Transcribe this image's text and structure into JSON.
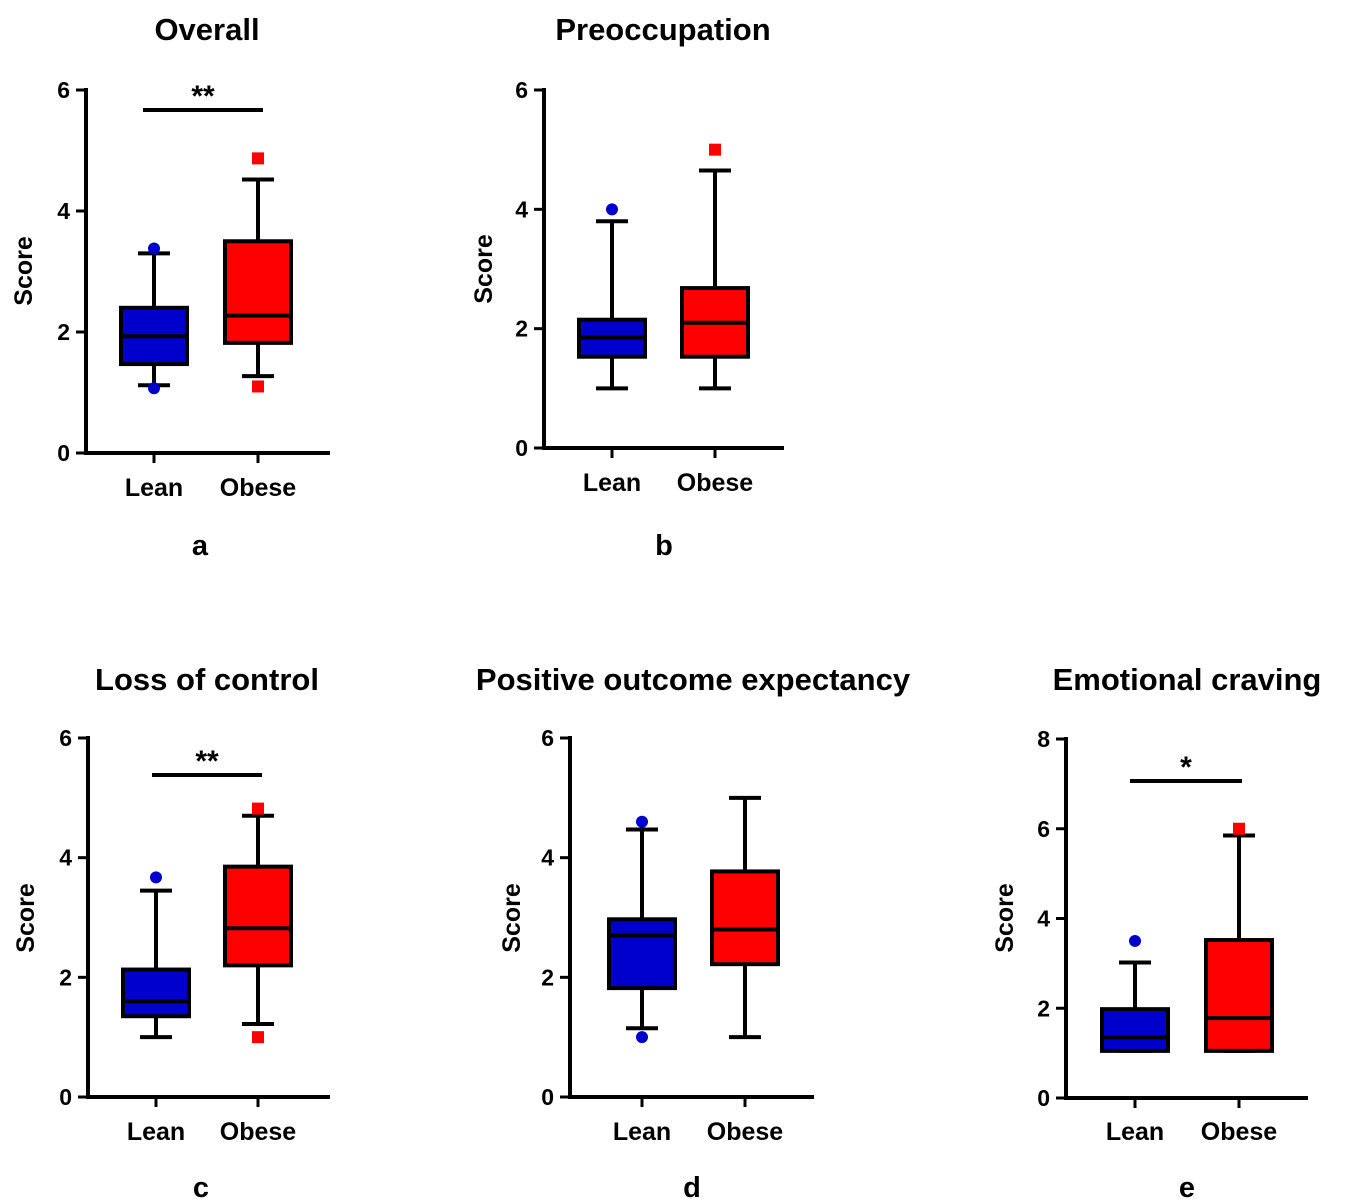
{
  "colors": {
    "lean": "#0000cc",
    "obese": "#ff0000",
    "axis": "#000000"
  },
  "chart_data": [
    {
      "type": "box",
      "panel": "a",
      "title": "Overall",
      "ylabel": "Score",
      "ylim": [
        0,
        6
      ],
      "yticks": [
        0,
        2,
        4,
        6
      ],
      "categories": [
        "Lean",
        "Obese"
      ],
      "significance": "**",
      "series": [
        {
          "name": "Lean",
          "whisker_low": 1.12,
          "q1": 1.47,
          "median": 1.93,
          "q3": 2.4,
          "whisker_high": 3.3,
          "outliers": [
            1.07,
            3.38
          ],
          "marker": "circle"
        },
        {
          "name": "Obese",
          "whisker_low": 1.27,
          "q1": 1.82,
          "median": 2.27,
          "q3": 3.5,
          "whisker_high": 4.52,
          "outliers": [
            1.1,
            4.87
          ],
          "marker": "square"
        }
      ]
    },
    {
      "type": "box",
      "panel": "b",
      "title": "Preoccupation",
      "ylabel": "Score",
      "ylim": [
        0,
        6
      ],
      "yticks": [
        0,
        2,
        4,
        6
      ],
      "categories": [
        "Lean",
        "Obese"
      ],
      "significance": "",
      "series": [
        {
          "name": "Lean",
          "whisker_low": 1.0,
          "q1": 1.53,
          "median": 1.85,
          "q3": 2.15,
          "whisker_high": 3.8,
          "outliers": [
            4.0
          ],
          "marker": "circle"
        },
        {
          "name": "Obese",
          "whisker_low": 1.0,
          "q1": 1.53,
          "median": 2.1,
          "q3": 2.68,
          "whisker_high": 4.65,
          "outliers": [
            5.0
          ],
          "marker": "square"
        }
      ]
    },
    {
      "type": "box",
      "panel": "c",
      "title": "Loss of control",
      "ylabel": "Score",
      "ylim": [
        0,
        6
      ],
      "yticks": [
        0,
        2,
        4,
        6
      ],
      "categories": [
        "Lean",
        "Obese"
      ],
      "significance": "**",
      "series": [
        {
          "name": "Lean",
          "whisker_low": 1.0,
          "q1": 1.35,
          "median": 1.6,
          "q3": 2.13,
          "whisker_high": 3.45,
          "outliers": [
            3.67
          ],
          "marker": "circle"
        },
        {
          "name": "Obese",
          "whisker_low": 1.22,
          "q1": 2.2,
          "median": 2.82,
          "q3": 3.85,
          "whisker_high": 4.7,
          "outliers": [
            1.0,
            4.82
          ],
          "marker": "square"
        }
      ]
    },
    {
      "type": "box",
      "panel": "d",
      "title": "Positive outcome expectancy",
      "ylabel": "Score",
      "ylim": [
        0,
        6
      ],
      "yticks": [
        0,
        2,
        4,
        6
      ],
      "categories": [
        "Lean",
        "Obese"
      ],
      "significance": "",
      "series": [
        {
          "name": "Lean",
          "whisker_low": 1.15,
          "q1": 1.82,
          "median": 2.7,
          "q3": 2.97,
          "whisker_high": 4.47,
          "outliers": [
            1.0,
            4.6
          ],
          "marker": "circle"
        },
        {
          "name": "Obese",
          "whisker_low": 1.0,
          "q1": 2.22,
          "median": 2.8,
          "q3": 3.77,
          "whisker_high": 5.0,
          "outliers": [],
          "marker": "square"
        }
      ]
    },
    {
      "type": "box",
      "panel": "e",
      "title": "Emotional craving",
      "ylabel": "Score",
      "ylim": [
        0,
        8
      ],
      "yticks": [
        0,
        2,
        4,
        6,
        8
      ],
      "categories": [
        "Lean",
        "Obese"
      ],
      "significance": "*",
      "series": [
        {
          "name": "Lean",
          "whisker_low": 1.05,
          "q1": 1.05,
          "median": 1.35,
          "q3": 1.98,
          "whisker_high": 3.02,
          "outliers": [
            3.5
          ],
          "marker": "circle"
        },
        {
          "name": "Obese",
          "whisker_low": 1.05,
          "q1": 1.05,
          "median": 1.78,
          "q3": 3.52,
          "whisker_high": 5.85,
          "outliers": [
            6.0
          ],
          "marker": "square"
        }
      ]
    }
  ]
}
